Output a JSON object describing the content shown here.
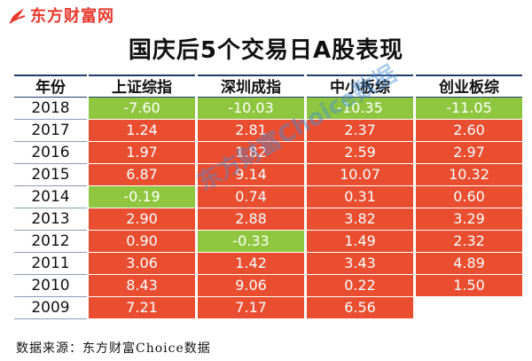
{
  "logo": {
    "text": "东方财富网"
  },
  "watermark": "东方财富Choice数据",
  "source": "数据来源：东方财富Choice数据",
  "colors": {
    "positive": "#e94e30",
    "negative": "#8ec63f",
    "header_rule": "#1f3d6b"
  },
  "chart_data": {
    "type": "table",
    "title": "国庆后5个交易日A股表现",
    "year_header": "年份",
    "years": [
      "2018",
      "2017",
      "2016",
      "2015",
      "2014",
      "2013",
      "2012",
      "2011",
      "2010",
      "2009"
    ],
    "series": [
      {
        "name": "上证综指",
        "values": [
          "-7.60",
          "1.24",
          "1.97",
          "6.87",
          "-0.19",
          "2.90",
          "0.90",
          "3.06",
          "8.43",
          "7.21"
        ]
      },
      {
        "name": "深圳成指",
        "values": [
          "-10.03",
          "2.81",
          "1.82",
          "9.14",
          "0.74",
          "2.88",
          "-0.33",
          "1.42",
          "9.06",
          "7.17"
        ]
      },
      {
        "name": "中小板综",
        "values": [
          "-10.35",
          "2.37",
          "2.59",
          "10.07",
          "0.31",
          "3.82",
          "1.49",
          "3.43",
          "0.22",
          "6.56"
        ]
      },
      {
        "name": "创业板综",
        "values": [
          "-11.05",
          "2.60",
          "2.97",
          "10.32",
          "0.60",
          "3.29",
          "2.32",
          "4.89",
          "1.50"
        ]
      }
    ]
  }
}
